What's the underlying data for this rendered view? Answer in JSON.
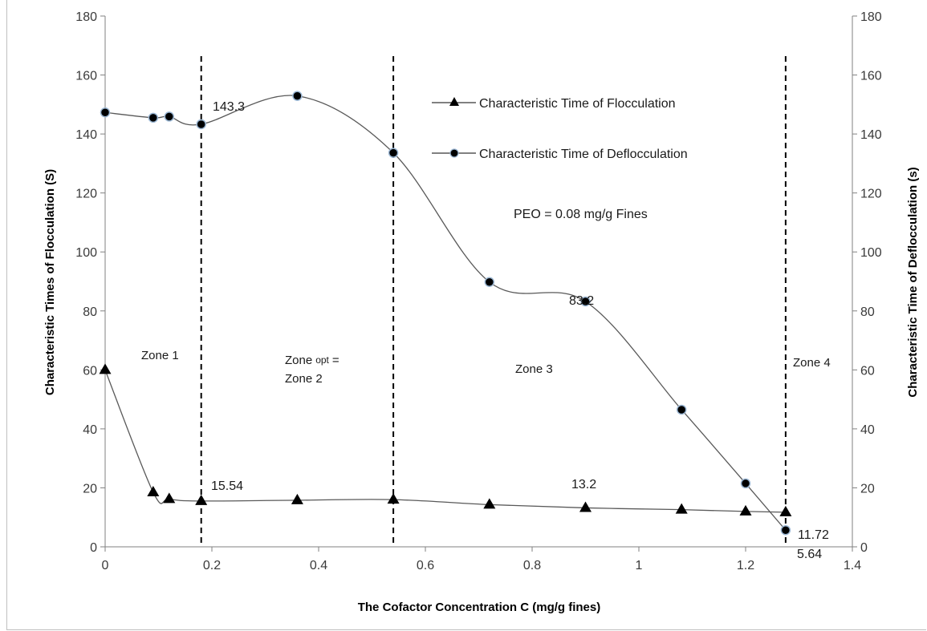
{
  "chart_data": {
    "type": "line",
    "x": [
      0,
      0.09,
      0.12,
      0.18,
      0.36,
      0.54,
      0.72,
      0.9,
      1.08,
      1.2,
      1.275
    ],
    "series": [
      {
        "name": "Characteristic Time of Flocculation",
        "axis": "left",
        "marker": "triangle",
        "values": [
          60,
          18.5,
          16.2,
          15.54,
          15.8,
          16,
          14.3,
          13.2,
          12.6,
          12,
          11.72
        ]
      },
      {
        "name": "Characteristic Time of Deflocculation",
        "axis": "right",
        "marker": "circle",
        "values": [
          147.3,
          145.5,
          145.9,
          143.3,
          152.9,
          133.6,
          89.8,
          83.2,
          46.5,
          21.5,
          5.64
        ]
      }
    ],
    "xlabel": "The Cofactor Concentration C (mg/g fines)",
    "ylabel_left": "Characteristic Times of Flocculation (S)",
    "ylabel_right": "Characteristic Time of Deflocculation (s)",
    "xlim": [
      0,
      1.4
    ],
    "ylim": [
      0,
      180
    ],
    "x_ticks": [
      "0",
      "0.2",
      "0.4",
      "0.6",
      "0.8",
      "1",
      "1.2",
      "1.4"
    ],
    "y_ticks": [
      "0",
      "20",
      "40",
      "60",
      "80",
      "100",
      "120",
      "140",
      "160",
      "180"
    ],
    "vlines": [
      0.18,
      0.54,
      1.275
    ],
    "grid": false,
    "legend_position": "top-right",
    "annotations": {
      "label_143": "143.3",
      "label_83": "83.2",
      "label_15": "15.54",
      "label_13": "13.2",
      "label_11": "11.72",
      "label_5": "5.64",
      "peo": "PEO = 0.08 mg/g Fines"
    },
    "zones": {
      "zone1": "Zone 1",
      "zone_opt_main": "Zone",
      "zone_opt_sub": "opt",
      "zone_opt_eq": "=",
      "zone2": "Zone 2",
      "zone3": "Zone 3",
      "zone4": "Zone 4"
    },
    "colors": {
      "line": "#595959",
      "marker": "#000000",
      "marker_ring": "#9bb7d4",
      "vline": "#000000"
    }
  }
}
